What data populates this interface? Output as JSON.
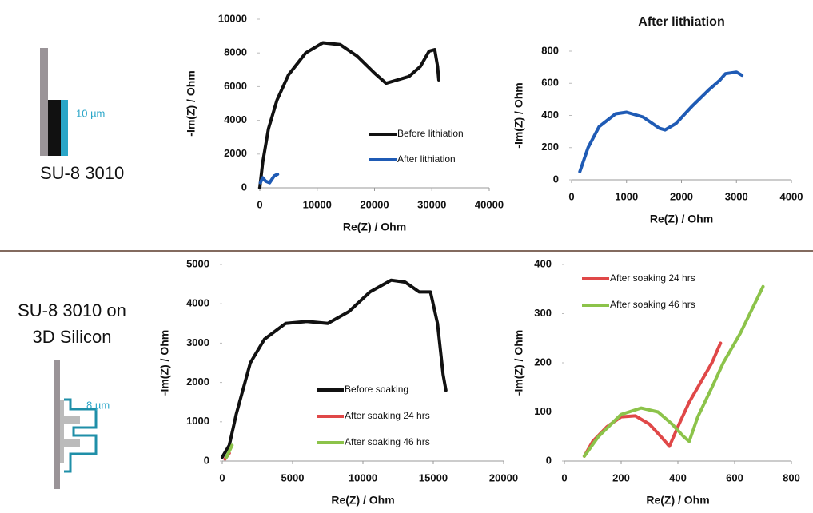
{
  "schematics": {
    "top": {
      "label": "SU-8 3010",
      "dimension": "10 µm"
    },
    "bottom": {
      "label_lines": [
        "SU-8 3010 on",
        "3D Silicon"
      ],
      "dimension": "8 µm"
    }
  },
  "chart_data": [
    {
      "type": "line",
      "xlabel": "Re(Z) / Ohm",
      "ylabel": "-Im(Z) / Ohm",
      "xlim": [
        0,
        40000
      ],
      "ylim": [
        0,
        10000
      ],
      "xticks": [
        0,
        10000,
        20000,
        30000,
        40000
      ],
      "yticks": [
        0,
        2000,
        4000,
        6000,
        8000,
        10000
      ],
      "legend": "lower right",
      "series": [
        {
          "name": "Before lithiation",
          "color": "#111111",
          "x": [
            0,
            500,
            1500,
            3000,
            5000,
            8000,
            11000,
            14000,
            17000,
            20000,
            22000,
            24000,
            26000,
            28000,
            29500,
            30500,
            31000,
            31200
          ],
          "values": [
            0,
            1500,
            3500,
            5200,
            6700,
            8000,
            8600,
            8500,
            7800,
            6800,
            6200,
            6400,
            6600,
            7200,
            8100,
            8200,
            7200,
            6400
          ]
        },
        {
          "name": "After lithiation",
          "color": "#1f5bb5",
          "x": [
            100,
            500,
            1000,
            1700,
            2500,
            3100
          ],
          "values": [
            300,
            600,
            400,
            300,
            700,
            800
          ]
        }
      ]
    },
    {
      "type": "line",
      "title": "After lithiation",
      "xlabel": "Re(Z) / Ohm",
      "ylabel": "-Im(Z) / Ohm",
      "xlim": [
        0,
        4000
      ],
      "ylim": [
        0,
        800
      ],
      "xticks": [
        0,
        1000,
        2000,
        3000,
        4000
      ],
      "yticks": [
        0,
        200,
        400,
        600,
        800
      ],
      "series": [
        {
          "color": "#1f5bb5",
          "x": [
            150,
            300,
            500,
            800,
            1000,
            1300,
            1600,
            1700,
            1900,
            2200,
            2500,
            2700,
            2800,
            3000,
            3100
          ],
          "values": [
            50,
            200,
            330,
            410,
            420,
            390,
            320,
            310,
            350,
            460,
            560,
            620,
            660,
            670,
            650
          ]
        }
      ]
    },
    {
      "type": "line",
      "xlabel": "Re(Z) / Ohm",
      "ylabel": "-Im(Z) / Ohm",
      "xlim": [
        0,
        20000
      ],
      "ylim": [
        0,
        5000
      ],
      "xticks": [
        0,
        5000,
        10000,
        15000,
        20000
      ],
      "yticks": [
        0,
        1000,
        2000,
        3000,
        4000,
        5000
      ],
      "legend": "lower right",
      "series": [
        {
          "name": "Before soaking",
          "color": "#111111",
          "x": [
            0,
            500,
            1000,
            2000,
            3000,
            4500,
            6000,
            7500,
            9000,
            10500,
            12000,
            13000,
            14000,
            14800,
            15300,
            15700,
            15900
          ],
          "values": [
            100,
            400,
            1200,
            2500,
            3100,
            3500,
            3550,
            3500,
            3800,
            4300,
            4600,
            4550,
            4300,
            4300,
            3500,
            2200,
            1800
          ]
        },
        {
          "name": "After soaking 24 hrs",
          "color": "#e04848",
          "x": [
            200,
            500
          ],
          "values": [
            50,
            200
          ]
        },
        {
          "name": "After soaking 46 hrs",
          "color": "#8cc34a",
          "x": [
            300,
            700
          ],
          "values": [
            100,
            400
          ]
        }
      ]
    },
    {
      "type": "line",
      "xlabel": "Re(Z) / Ohm",
      "ylabel": "-Im(Z) / Ohm",
      "xlim": [
        0,
        800
      ],
      "ylim": [
        0,
        400
      ],
      "xticks": [
        0,
        200,
        400,
        600,
        800
      ],
      "yticks": [
        0,
        100,
        200,
        300,
        400
      ],
      "legend": "upper left",
      "series": [
        {
          "name": "After soaking 24 hrs",
          "color": "#e04848",
          "x": [
            70,
            100,
            150,
            200,
            250,
            300,
            340,
            370,
            400,
            440,
            480,
            520,
            550
          ],
          "values": [
            10,
            40,
            70,
            90,
            92,
            75,
            50,
            30,
            70,
            120,
            160,
            200,
            240
          ]
        },
        {
          "name": "After soaking 46 hrs",
          "color": "#8cc34a",
          "x": [
            70,
            120,
            200,
            270,
            330,
            380,
            420,
            440,
            470,
            520,
            560,
            620,
            700
          ],
          "values": [
            10,
            50,
            95,
            108,
            100,
            75,
            50,
            40,
            90,
            150,
            200,
            260,
            355
          ]
        }
      ]
    }
  ]
}
